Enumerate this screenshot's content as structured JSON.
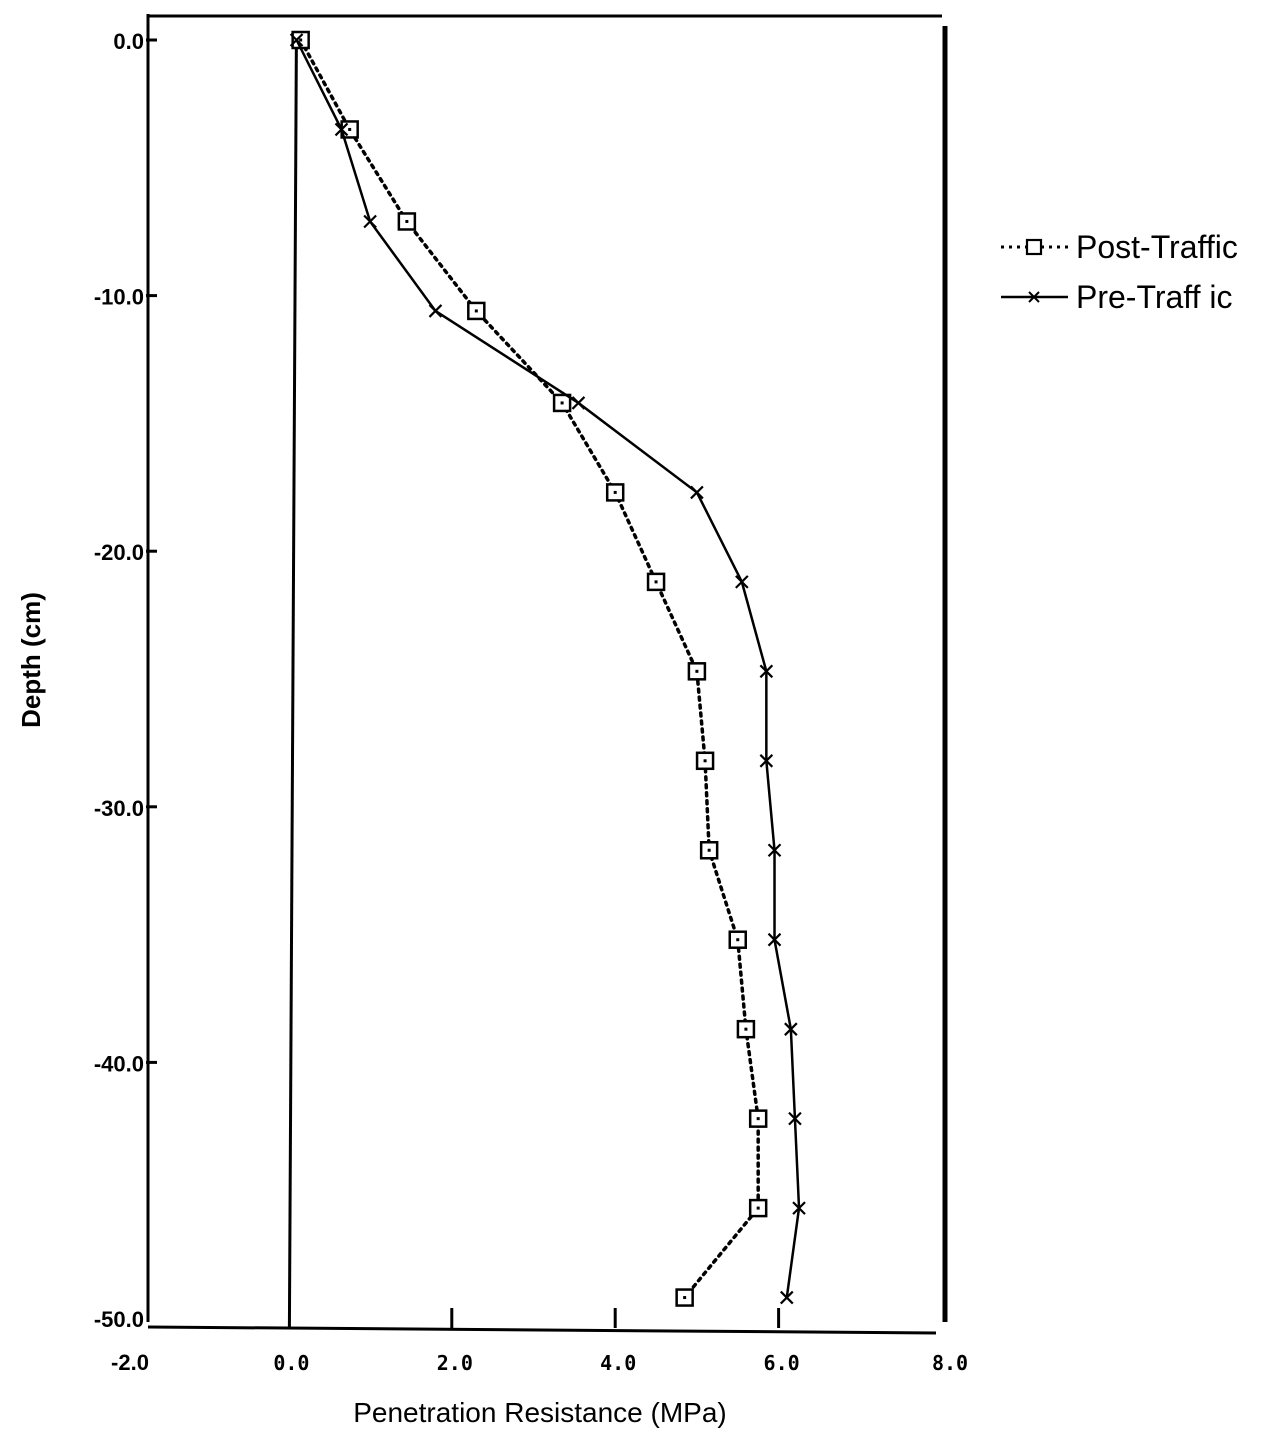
{
  "chart_data": {
    "type": "line",
    "xlabel": "Penetration Resistance (MPa)",
    "ylabel": "Depth (cm)",
    "xlim": [
      -2.0,
      8.0
    ],
    "ylim": [
      -50.0,
      0.0
    ],
    "x_ticks": [
      "-2.0",
      "0.0",
      "2.0",
      "4.0",
      "6.0",
      "8.0"
    ],
    "y_ticks": [
      "0.0",
      "-10.0",
      "-20.0",
      "-30.0",
      "-40.0",
      "-50.0"
    ],
    "grid": false,
    "legend_position": "right",
    "series": [
      {
        "name": "Post-Traffic",
        "style": "dotted",
        "marker": "square",
        "points": [
          {
            "x": 0.15,
            "y": 0.0
          },
          {
            "x": 0.75,
            "y": -3.5
          },
          {
            "x": 1.45,
            "y": -7.1
          },
          {
            "x": 2.3,
            "y": -10.6
          },
          {
            "x": 3.35,
            "y": -14.2
          },
          {
            "x": 4.0,
            "y": -17.7
          },
          {
            "x": 4.5,
            "y": -21.2
          },
          {
            "x": 5.0,
            "y": -24.7
          },
          {
            "x": 5.1,
            "y": -28.2
          },
          {
            "x": 5.15,
            "y": -31.7
          },
          {
            "x": 5.5,
            "y": -35.2
          },
          {
            "x": 5.6,
            "y": -38.7
          },
          {
            "x": 5.75,
            "y": -42.2
          },
          {
            "x": 5.75,
            "y": -45.7
          },
          {
            "x": 4.85,
            "y": -49.2
          }
        ]
      },
      {
        "name": "Pre-Traff ic",
        "style": "solid",
        "marker": "x",
        "points": [
          {
            "x": 0.1,
            "y": 0.0
          },
          {
            "x": 0.65,
            "y": -3.5
          },
          {
            "x": 1.0,
            "y": -7.1
          },
          {
            "x": 1.8,
            "y": -10.6
          },
          {
            "x": 3.55,
            "y": -14.2
          },
          {
            "x": 5.0,
            "y": -17.7
          },
          {
            "x": 5.55,
            "y": -21.2
          },
          {
            "x": 5.85,
            "y": -24.7
          },
          {
            "x": 5.85,
            "y": -28.2
          },
          {
            "x": 5.95,
            "y": -31.7
          },
          {
            "x": 5.95,
            "y": -35.2
          },
          {
            "x": 6.15,
            "y": -38.7
          },
          {
            "x": 6.2,
            "y": -42.2
          },
          {
            "x": 6.25,
            "y": -45.7
          },
          {
            "x": 6.1,
            "y": -49.2
          }
        ]
      }
    ]
  }
}
